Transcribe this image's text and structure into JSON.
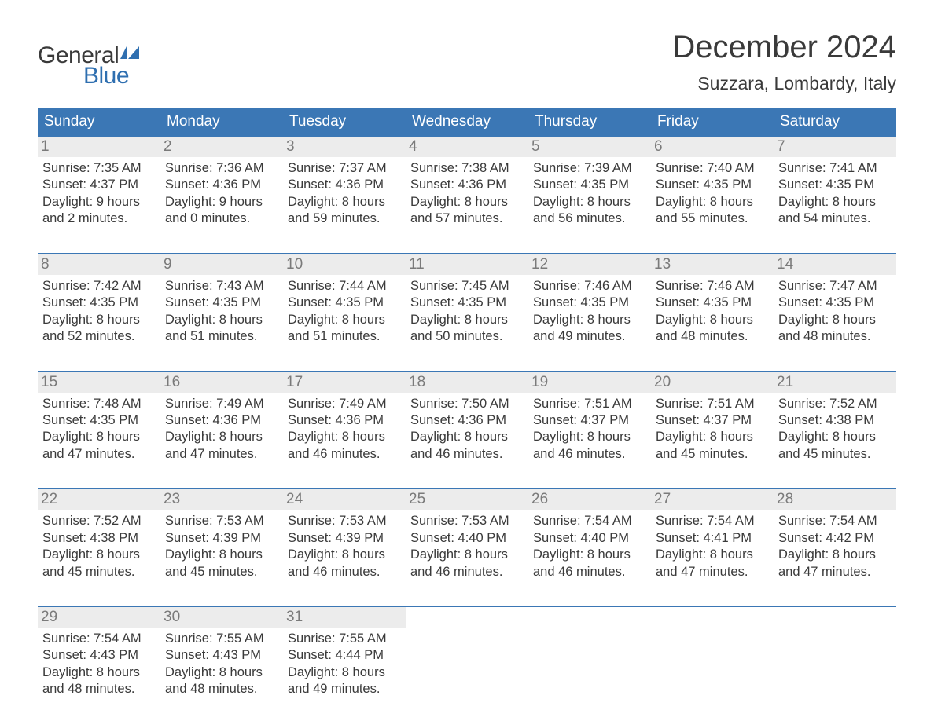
{
  "logo": {
    "line1": "General",
    "line2": "Blue"
  },
  "title": "December 2024",
  "subtitle": "Suzzara, Lombardy, Italy",
  "colors": {
    "header_bg": "#3b77b5",
    "header_text": "#ffffff",
    "daynum_bg": "#ececec",
    "daynum_text": "#7a7a7a",
    "body_text": "#3a3a3a",
    "week_border": "#3b77b5",
    "logo_blue": "#2f6fb0"
  },
  "dow": [
    "Sunday",
    "Monday",
    "Tuesday",
    "Wednesday",
    "Thursday",
    "Friday",
    "Saturday"
  ],
  "weeks": [
    [
      {
        "n": "1",
        "sr": "7:35 AM",
        "ss": "4:37 PM",
        "dl": "9 hours and 2 minutes."
      },
      {
        "n": "2",
        "sr": "7:36 AM",
        "ss": "4:36 PM",
        "dl": "9 hours and 0 minutes."
      },
      {
        "n": "3",
        "sr": "7:37 AM",
        "ss": "4:36 PM",
        "dl": "8 hours and 59 minutes."
      },
      {
        "n": "4",
        "sr": "7:38 AM",
        "ss": "4:36 PM",
        "dl": "8 hours and 57 minutes."
      },
      {
        "n": "5",
        "sr": "7:39 AM",
        "ss": "4:35 PM",
        "dl": "8 hours and 56 minutes."
      },
      {
        "n": "6",
        "sr": "7:40 AM",
        "ss": "4:35 PM",
        "dl": "8 hours and 55 minutes."
      },
      {
        "n": "7",
        "sr": "7:41 AM",
        "ss": "4:35 PM",
        "dl": "8 hours and 54 minutes."
      }
    ],
    [
      {
        "n": "8",
        "sr": "7:42 AM",
        "ss": "4:35 PM",
        "dl": "8 hours and 52 minutes."
      },
      {
        "n": "9",
        "sr": "7:43 AM",
        "ss": "4:35 PM",
        "dl": "8 hours and 51 minutes."
      },
      {
        "n": "10",
        "sr": "7:44 AM",
        "ss": "4:35 PM",
        "dl": "8 hours and 51 minutes."
      },
      {
        "n": "11",
        "sr": "7:45 AM",
        "ss": "4:35 PM",
        "dl": "8 hours and 50 minutes."
      },
      {
        "n": "12",
        "sr": "7:46 AM",
        "ss": "4:35 PM",
        "dl": "8 hours and 49 minutes."
      },
      {
        "n": "13",
        "sr": "7:46 AM",
        "ss": "4:35 PM",
        "dl": "8 hours and 48 minutes."
      },
      {
        "n": "14",
        "sr": "7:47 AM",
        "ss": "4:35 PM",
        "dl": "8 hours and 48 minutes."
      }
    ],
    [
      {
        "n": "15",
        "sr": "7:48 AM",
        "ss": "4:35 PM",
        "dl": "8 hours and 47 minutes."
      },
      {
        "n": "16",
        "sr": "7:49 AM",
        "ss": "4:36 PM",
        "dl": "8 hours and 47 minutes."
      },
      {
        "n": "17",
        "sr": "7:49 AM",
        "ss": "4:36 PM",
        "dl": "8 hours and 46 minutes."
      },
      {
        "n": "18",
        "sr": "7:50 AM",
        "ss": "4:36 PM",
        "dl": "8 hours and 46 minutes."
      },
      {
        "n": "19",
        "sr": "7:51 AM",
        "ss": "4:37 PM",
        "dl": "8 hours and 46 minutes."
      },
      {
        "n": "20",
        "sr": "7:51 AM",
        "ss": "4:37 PM",
        "dl": "8 hours and 45 minutes."
      },
      {
        "n": "21",
        "sr": "7:52 AM",
        "ss": "4:38 PM",
        "dl": "8 hours and 45 minutes."
      }
    ],
    [
      {
        "n": "22",
        "sr": "7:52 AM",
        "ss": "4:38 PM",
        "dl": "8 hours and 45 minutes."
      },
      {
        "n": "23",
        "sr": "7:53 AM",
        "ss": "4:39 PM",
        "dl": "8 hours and 45 minutes."
      },
      {
        "n": "24",
        "sr": "7:53 AM",
        "ss": "4:39 PM",
        "dl": "8 hours and 46 minutes."
      },
      {
        "n": "25",
        "sr": "7:53 AM",
        "ss": "4:40 PM",
        "dl": "8 hours and 46 minutes."
      },
      {
        "n": "26",
        "sr": "7:54 AM",
        "ss": "4:40 PM",
        "dl": "8 hours and 46 minutes."
      },
      {
        "n": "27",
        "sr": "7:54 AM",
        "ss": "4:41 PM",
        "dl": "8 hours and 47 minutes."
      },
      {
        "n": "28",
        "sr": "7:54 AM",
        "ss": "4:42 PM",
        "dl": "8 hours and 47 minutes."
      }
    ],
    [
      {
        "n": "29",
        "sr": "7:54 AM",
        "ss": "4:43 PM",
        "dl": "8 hours and 48 minutes."
      },
      {
        "n": "30",
        "sr": "7:55 AM",
        "ss": "4:43 PM",
        "dl": "8 hours and 48 minutes."
      },
      {
        "n": "31",
        "sr": "7:55 AM",
        "ss": "4:44 PM",
        "dl": "8 hours and 49 minutes."
      },
      null,
      null,
      null,
      null
    ]
  ],
  "labels": {
    "sunrise": "Sunrise: ",
    "sunset": "Sunset: ",
    "daylight": "Daylight: "
  }
}
